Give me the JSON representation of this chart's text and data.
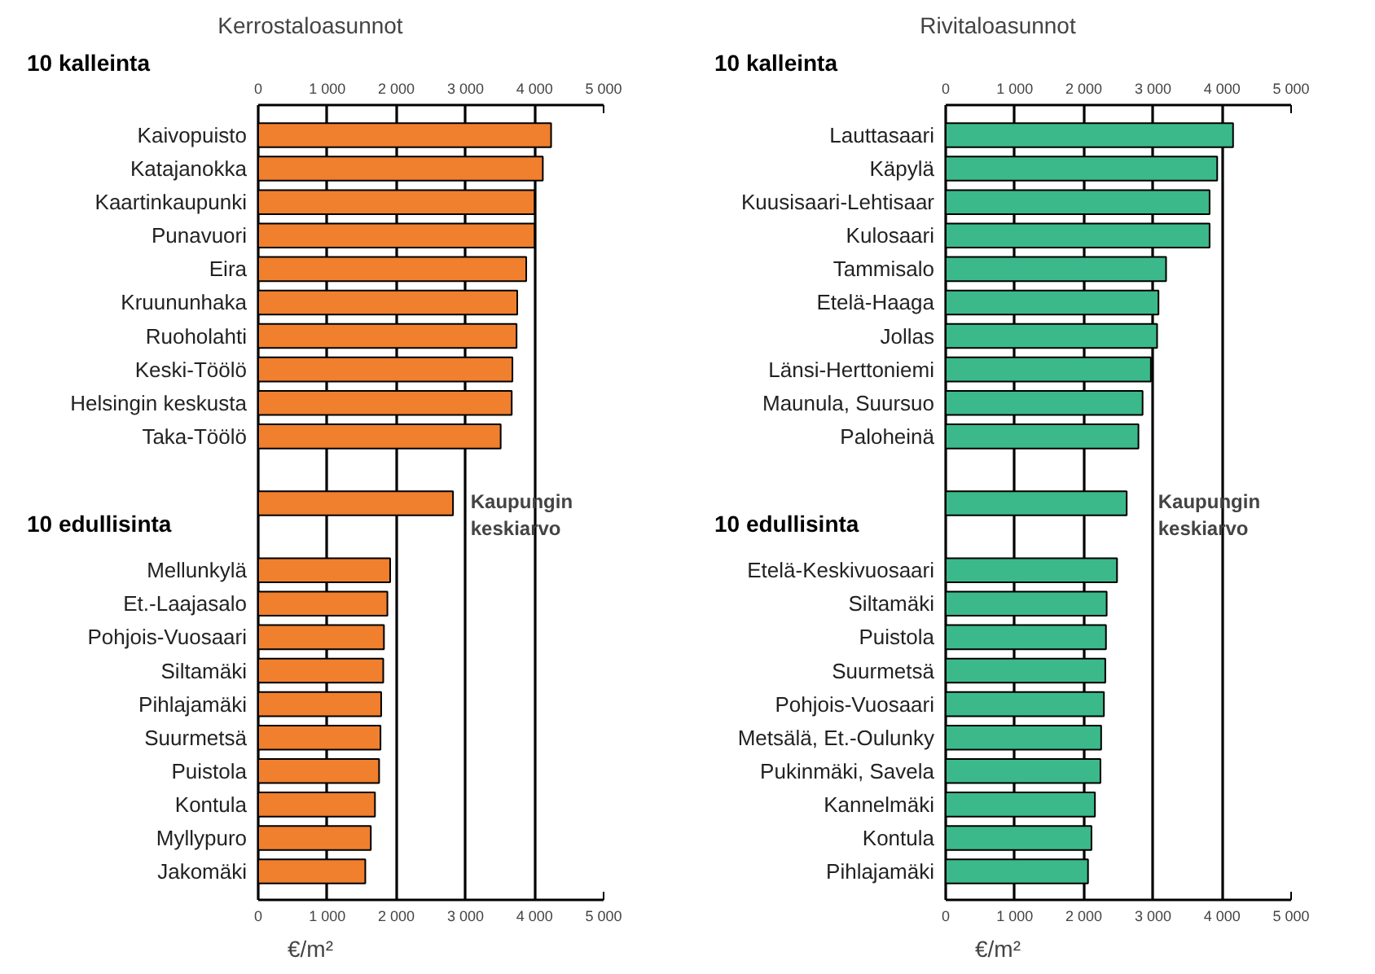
{
  "chart_data": [
    {
      "type": "bar",
      "orientation": "horizontal",
      "title": "Kerrostaloasunnot",
      "xlabel": "€/m²",
      "categories": [
        "Kaivopuisto",
        "Katajanokka",
        "Kaartinkaupunki",
        "Punavuori",
        "Eira",
        "Kruununhaka",
        "Ruoholahti",
        "Keski-Töölö",
        "Helsingin keskusta",
        "Taka-Töölö",
        null,
        null,
        null,
        "Mellunkylä",
        "Et.-Laajasalo",
        "Pohjois-Vuosaari",
        "Siltamäki",
        "Pihlajamäki",
        "Suurmetsä",
        "Puistola",
        "Kontula",
        "Myllypuro",
        "Jakomäki"
      ],
      "values": [
        4240,
        4120,
        4000,
        4000,
        3880,
        3750,
        3740,
        3680,
        3670,
        3510,
        null,
        2820,
        null,
        1910,
        1870,
        1820,
        1810,
        1780,
        1770,
        1750,
        1690,
        1630,
        1550
      ],
      "color": "#f07f2e",
      "xlim": [
        0,
        5000
      ],
      "xticks": [
        0,
        {
          "value": 1000,
          "label": "1 000"
        },
        {
          "value": 2000,
          "label": "2 000"
        },
        {
          "value": 3000,
          "label": "3 000"
        },
        {
          "value": 4000,
          "label": "4 000"
        },
        {
          "value": 5000,
          "label": "5 000"
        }
      ],
      "x2lim": [
        0,
        5000
      ],
      "x2ticks": [
        0,
        {
          "value": 1000,
          "label": "1 000"
        },
        {
          "value": 2000,
          "label": "2 000"
        },
        {
          "value": 3000,
          "label": "3 000"
        },
        {
          "value": 4000,
          "label": "4 000"
        },
        {
          "value": 5000,
          "label": "5 000"
        }
      ],
      "grid": "x",
      "annotations": [
        "10 kalleinta",
        "10 edullisinta",
        "Kaupungin\nkeskiarvo"
      ]
    },
    {
      "type": "bar",
      "orientation": "horizontal",
      "title": "Rivitaloasunnot",
      "xlabel": "€/m²",
      "categories": [
        "Lauttasaari",
        "Käpylä",
        "Kuusisaari-Lehtisaar",
        "Kulosaari",
        "Tammisalo",
        "Etelä-Haaga",
        "Jollas",
        "Länsi-Herttoniemi",
        "Maunula, Suursuo",
        "Paloheinä",
        null,
        null,
        null,
        "Etelä-Keskivuosaari",
        "Siltamäki",
        "Puistola",
        "Suurmetsä",
        "Pohjois-Vuosaari",
        "Metsälä, Et.-Oulunky",
        "Pukinmäki, Savela",
        "Kannelmäki",
        "Kontula",
        "Pihlajamäki"
      ],
      "values": [
        4160,
        3930,
        3820,
        3820,
        3190,
        3080,
        3060,
        2970,
        2850,
        2790,
        null,
        2620,
        null,
        2480,
        2330,
        2320,
        2310,
        2290,
        2250,
        2240,
        2160,
        2110,
        2060
      ],
      "color": "#3bb98a",
      "xlim": [
        0,
        5000
      ],
      "xticks": [
        0,
        {
          "value": 1000,
          "label": "1 000"
        },
        {
          "value": 2000,
          "label": "2 000"
        },
        {
          "value": 3000,
          "label": "3 000"
        },
        {
          "value": 4000,
          "label": "4 000"
        },
        {
          "value": 5000,
          "label": "5 000"
        }
      ],
      "x2lim": [
        0,
        5000
      ],
      "x2ticks": [
        0,
        {
          "value": 1000,
          "label": "1 000"
        },
        {
          "value": 2000,
          "label": "2 000"
        },
        {
          "value": 3000,
          "label": "3 000"
        },
        {
          "value": 4000,
          "label": "4 000"
        },
        {
          "value": 5000,
          "label": "5 000"
        }
      ],
      "grid": "x",
      "annotations": [
        "10 kalleinta",
        "10 edullisinta",
        "Kaupungin\nkeskiarvo"
      ]
    }
  ]
}
